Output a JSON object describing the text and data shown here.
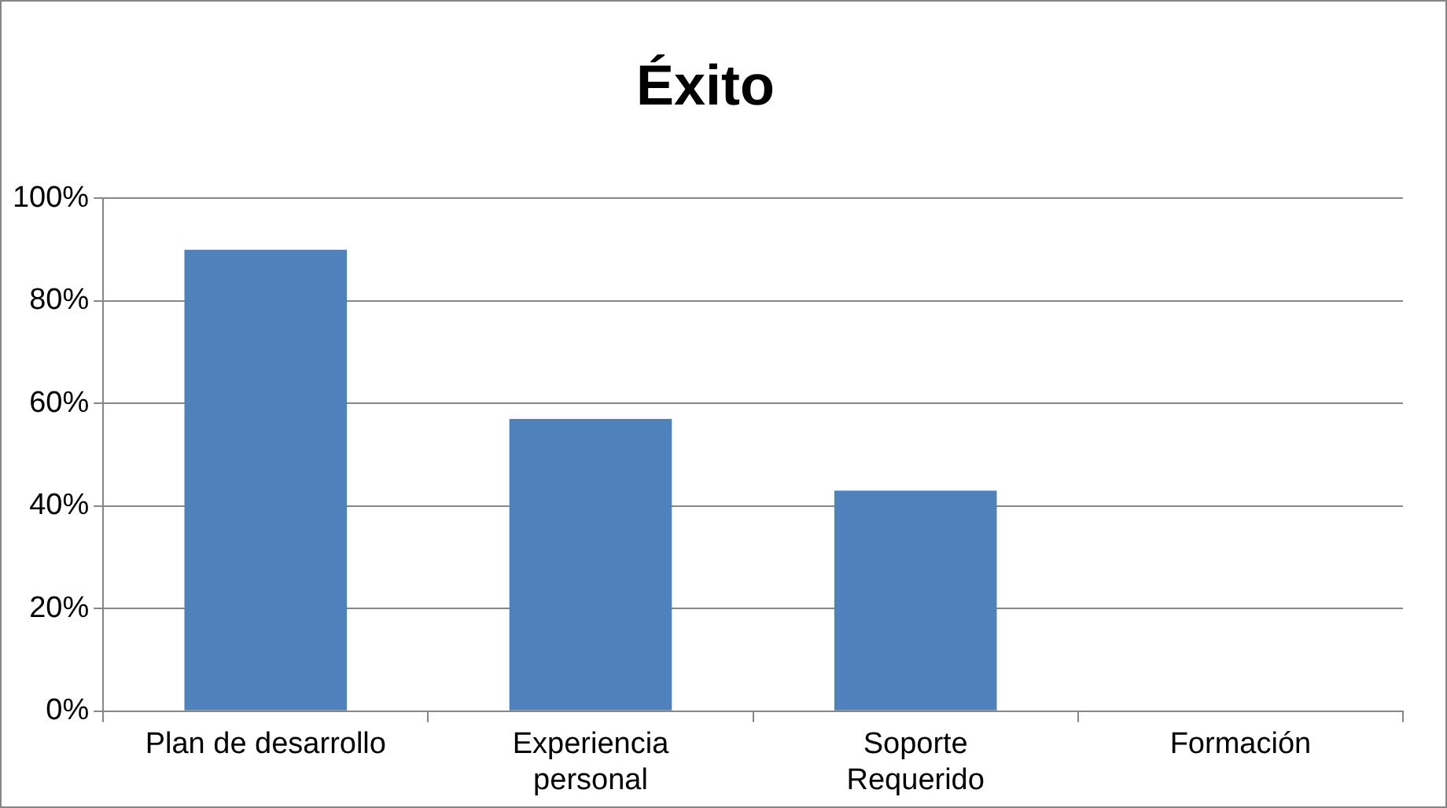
{
  "chart_data": {
    "type": "bar",
    "title": "Éxito",
    "categories": [
      "Plan de desarrollo",
      "Experiencia\npersonal",
      "Soporte\nRequerido",
      "Formación"
    ],
    "values": [
      0.9,
      0.57,
      0.43,
      0
    ],
    "color": "#4f81bd",
    "ylim": [
      0,
      1
    ],
    "yticks": [
      {
        "value": 0,
        "label": "0%"
      },
      {
        "value": 0.2,
        "label": "20%"
      },
      {
        "value": 0.4,
        "label": "40%"
      },
      {
        "value": 0.6,
        "label": "60%"
      },
      {
        "value": 0.8,
        "label": "80%"
      },
      {
        "value": 1,
        "label": "100%"
      }
    ],
    "grid": "y",
    "legend": false
  }
}
